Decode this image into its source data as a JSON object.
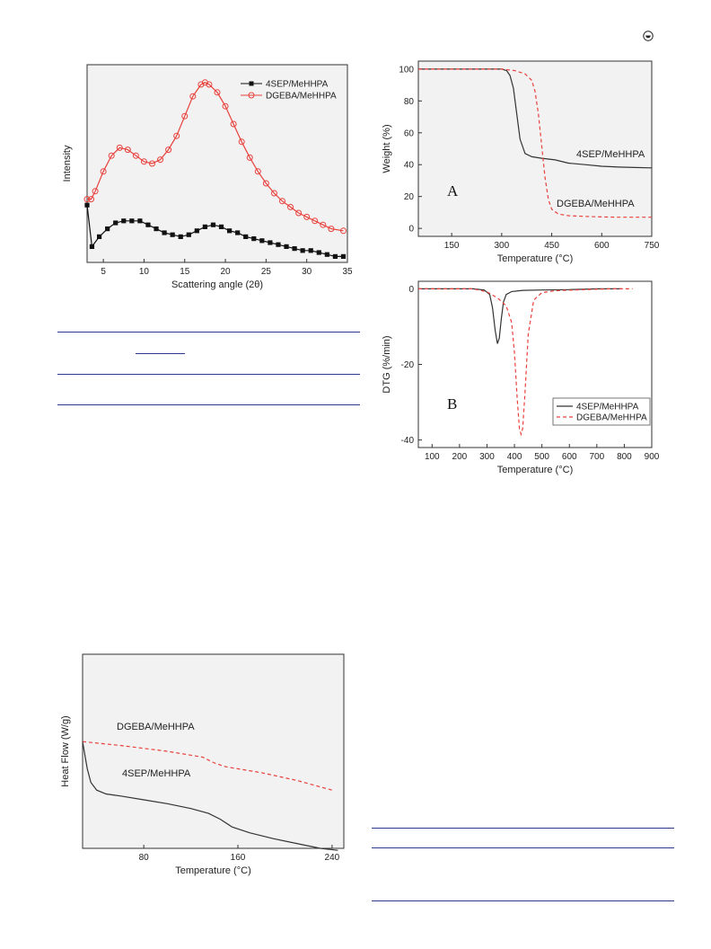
{
  "corner_icon": "open-access-icon",
  "colors": {
    "red": "#e8413c",
    "dark": "#333333",
    "rule": "#2b3a8c",
    "panel": "#f2f2f2"
  },
  "chart_data": [
    {
      "id": "xrd",
      "type": "line",
      "xlabel": "Scattering angle (2θ)",
      "ylabel": "Intensity",
      "xticks": [
        "5",
        "10",
        "15",
        "20",
        "25",
        "30",
        "35"
      ],
      "xlim": [
        3,
        35
      ],
      "ylim": [
        0,
        100
      ],
      "yticks_shown": false,
      "legend_position": "top-right",
      "series": [
        {
          "name": "4SEP/MeHHPA",
          "marker": "filled-square",
          "color": "#111111",
          "x": [
            3.0,
            3.6,
            4.5,
            5.5,
            6.5,
            7.5,
            8.5,
            9.5,
            10.5,
            11.5,
            12.5,
            13.5,
            14.5,
            15.5,
            16.5,
            17.5,
            18.5,
            19.5,
            20.5,
            21.5,
            22.5,
            23.5,
            24.5,
            25.5,
            26.5,
            27.5,
            28.5,
            29.5,
            30.5,
            31.5,
            32.5,
            33.5,
            34.5
          ],
          "y": [
            29,
            8,
            13,
            17,
            20,
            21,
            21,
            21,
            19,
            17,
            15,
            14,
            13,
            14,
            16,
            18,
            19,
            18,
            16,
            15,
            13,
            12,
            11,
            10,
            9,
            8,
            7,
            6,
            6,
            5,
            4,
            3,
            3
          ]
        },
        {
          "name": "DGEBA/MeHHPA",
          "marker": "open-circle",
          "color": "#e8413c",
          "x": [
            3.0,
            3.5,
            4.0,
            5.0,
            6.0,
            7.0,
            8.0,
            9.0,
            10.0,
            11.0,
            12.0,
            13.0,
            14.0,
            15.0,
            16.0,
            17.0,
            17.5,
            18.0,
            19.0,
            20.0,
            21.0,
            22.0,
            23.0,
            24.0,
            25.0,
            26.0,
            27.0,
            28.0,
            29.0,
            30.0,
            31.0,
            32.0,
            33.0,
            34.5
          ],
          "y": [
            32,
            32,
            36,
            46,
            54,
            58,
            57,
            54,
            51,
            50,
            52,
            57,
            64,
            74,
            84,
            90,
            91,
            90,
            86,
            79,
            70,
            61,
            53,
            46,
            40,
            35,
            31,
            28,
            25,
            23,
            21,
            19,
            17,
            16
          ]
        }
      ]
    },
    {
      "id": "tga",
      "type": "line",
      "xlabel": "Temperature (°C)",
      "ylabel": "Weight (%)",
      "xticks": [
        "150",
        "300",
        "450",
        "600",
        "750"
      ],
      "yticks": [
        "0",
        "20",
        "40",
        "60",
        "80",
        "100"
      ],
      "xlim": [
        50,
        750
      ],
      "ylim": [
        -5,
        105
      ],
      "panel_letter": "A",
      "series": [
        {
          "name": "4SEP/MeHHPA",
          "style": "solid",
          "color": "#333333",
          "x": [
            50,
            150,
            250,
            300,
            315,
            325,
            335,
            345,
            355,
            370,
            390,
            420,
            460,
            500,
            550,
            600,
            650,
            700,
            750
          ],
          "y": [
            100,
            100,
            100,
            100,
            99,
            96,
            88,
            72,
            56,
            47,
            45,
            44,
            43,
            41,
            40,
            39,
            38.5,
            38.2,
            38
          ]
        },
        {
          "name": "DGEBA/MeHHPA",
          "style": "dashed",
          "color": "#e8413c",
          "x": [
            50,
            200,
            300,
            340,
            370,
            390,
            400,
            410,
            420,
            430,
            440,
            450,
            470,
            500,
            550,
            600,
            650,
            700,
            750
          ],
          "y": [
            100,
            100,
            100,
            99,
            97,
            93,
            86,
            72,
            52,
            32,
            18,
            12,
            9,
            8,
            7.5,
            7.2,
            7,
            7,
            7
          ]
        }
      ]
    },
    {
      "id": "dtg",
      "type": "line",
      "xlabel": "Temperature (°C)",
      "ylabel": "DTG (%/min)",
      "xticks": [
        "100",
        "200",
        "300",
        "400",
        "500",
        "600",
        "700",
        "800",
        "900"
      ],
      "yticks": [
        "0",
        "-20",
        "-40"
      ],
      "xlim": [
        50,
        900
      ],
      "ylim": [
        -42,
        2
      ],
      "panel_letter": "B",
      "legend_position": "bottom-right",
      "series": [
        {
          "name": "4SEP/MeHHPA",
          "style": "solid",
          "color": "#333333",
          "x": [
            50,
            250,
            290,
            310,
            320,
            330,
            338,
            345,
            352,
            360,
            370,
            390,
            430,
            500,
            600,
            700,
            790
          ],
          "y": [
            0,
            0,
            -0.3,
            -1.5,
            -5,
            -11,
            -14.5,
            -13,
            -8,
            -3.5,
            -1.5,
            -0.7,
            -0.4,
            -0.3,
            -0.2,
            0,
            0
          ]
        },
        {
          "name": "DGEBA/MeHHPA",
          "style": "dashed",
          "color": "#e8413c",
          "x": [
            50,
            250,
            300,
            340,
            370,
            390,
            400,
            410,
            418,
            424,
            430,
            438,
            450,
            470,
            500,
            550,
            650,
            750,
            830
          ],
          "y": [
            0,
            0,
            -0.8,
            -2.5,
            -4.5,
            -9,
            -17,
            -29,
            -37,
            -38.5,
            -37,
            -28,
            -12,
            -3,
            -1,
            -0.5,
            -0.2,
            0,
            0
          ]
        }
      ]
    },
    {
      "id": "dsc",
      "type": "line",
      "xlabel": "Temperature (°C)",
      "ylabel": "Heat Flow (W/g)",
      "xticks": [
        "80",
        "160",
        "240"
      ],
      "xlim": [
        28,
        250
      ],
      "ylim": [
        0,
        100
      ],
      "yticks_shown": false,
      "series": [
        {
          "name": "DGEBA/MeHHPA",
          "style": "dashed",
          "color": "#e8413c",
          "label_position": "upper-left",
          "x": [
            28,
            60,
            100,
            130,
            140,
            150,
            180,
            210,
            240
          ],
          "y": [
            55,
            53,
            50,
            47,
            44,
            42,
            39,
            35,
            30
          ]
        },
        {
          "name": "4SEP/MeHHPA",
          "style": "solid",
          "color": "#333333",
          "label_position": "upper-left",
          "x": [
            28,
            30,
            32,
            35,
            40,
            48,
            60,
            80,
            100,
            120,
            135,
            145,
            155,
            170,
            190,
            210,
            230,
            245
          ],
          "y": [
            55,
            48,
            41,
            34,
            30,
            28,
            27,
            25,
            23,
            20.5,
            18,
            15,
            11,
            8,
            5,
            2.5,
            0,
            -1
          ]
        }
      ]
    }
  ]
}
